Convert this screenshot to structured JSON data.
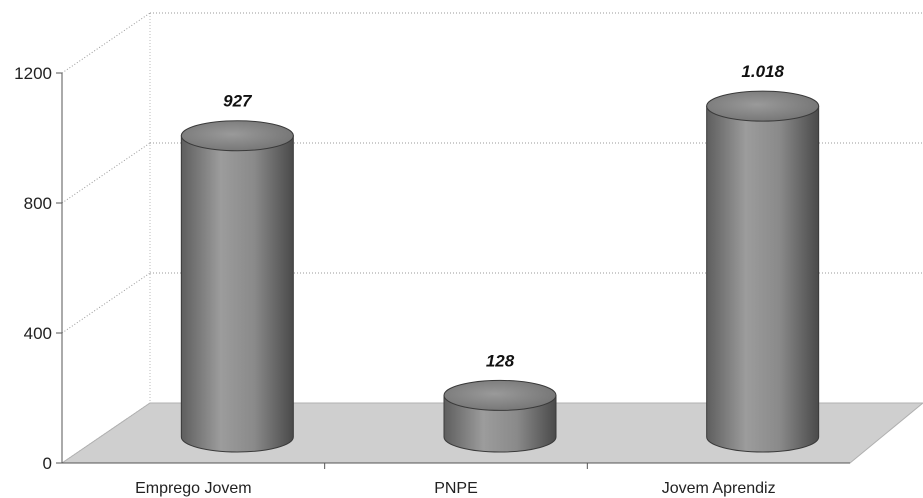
{
  "chart_data": {
    "type": "bar",
    "categories": [
      "Emprego Jovem",
      "PNPE",
      "Jovem Aprendiz"
    ],
    "values": [
      927,
      128,
      1018
    ],
    "data_labels": [
      "927",
      "128",
      "1.018"
    ],
    "title": "",
    "xlabel": "",
    "ylabel": "",
    "ylim": [
      0,
      1200
    ],
    "yticks": [
      0,
      400,
      800,
      1200
    ],
    "ytick_labels": [
      "0",
      "400",
      "800",
      "1200"
    ],
    "grid": true,
    "legend": "none",
    "style": "3d-cylinder",
    "colors": {
      "bar": "#8a8a8a",
      "bar_dark": "#4d4d4d",
      "bar_light": "#b9b9b9",
      "floor": "#cfcfcf",
      "gridline": "#9a9a9a"
    }
  }
}
